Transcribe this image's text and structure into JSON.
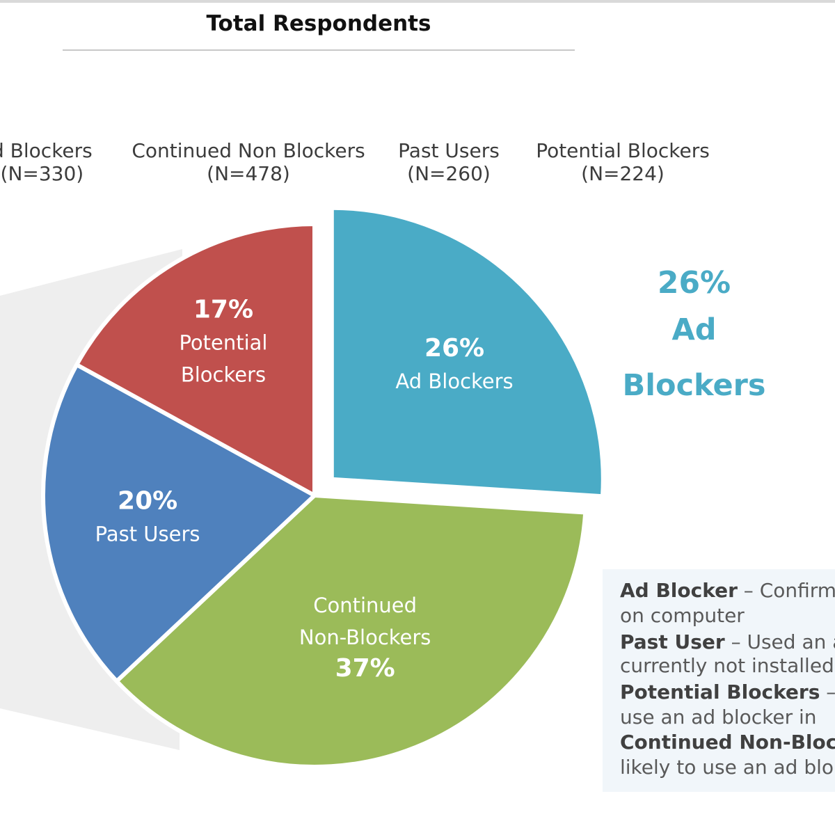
{
  "title": "Total Respondents",
  "header": [
    {
      "name": "d Blockers",
      "n": "(N=330)"
    },
    {
      "name": "Continued Non Blockers",
      "n": "(N=478)"
    },
    {
      "name": "Past Users",
      "n": "(N=260)"
    },
    {
      "name": "Potential Blockers",
      "n": "(N=224)"
    }
  ],
  "callout": {
    "pct": "26%",
    "label": "Ad Blockers",
    "color": "#4aabc6"
  },
  "chart_data": {
    "type": "pie",
    "title": "Total Respondents",
    "slices": [
      {
        "pct": "26%",
        "lines": [
          "Ad Blockers"
        ],
        "value": 26,
        "color": "#4aabc6"
      },
      {
        "pct": "37%",
        "lines": [
          "Continued",
          "Non-Blockers"
        ],
        "value": 37,
        "color": "#9bbb59"
      },
      {
        "pct": "20%",
        "lines": [
          "Past Users"
        ],
        "value": 20,
        "color": "#4f81bd"
      },
      {
        "pct": "17%",
        "lines": [
          "Potential",
          "Blockers"
        ],
        "value": 17,
        "color": "#c0504d"
      }
    ]
  },
  "definitions": [
    {
      "term": "Ad Blocker",
      "text": " – Confirm"
    },
    {
      "term": "",
      "text": "on computer"
    },
    {
      "term": "Past User",
      "text": " –  Used an a"
    },
    {
      "term": "",
      "text": "currently not installed"
    },
    {
      "term": "Potential Blockers",
      "text": " – N"
    },
    {
      "term": "",
      "text": "use an ad blocker in"
    },
    {
      "term": "Continued Non-Blockers",
      "text": ""
    },
    {
      "term": "",
      "text": "likely to use an ad blo"
    }
  ]
}
